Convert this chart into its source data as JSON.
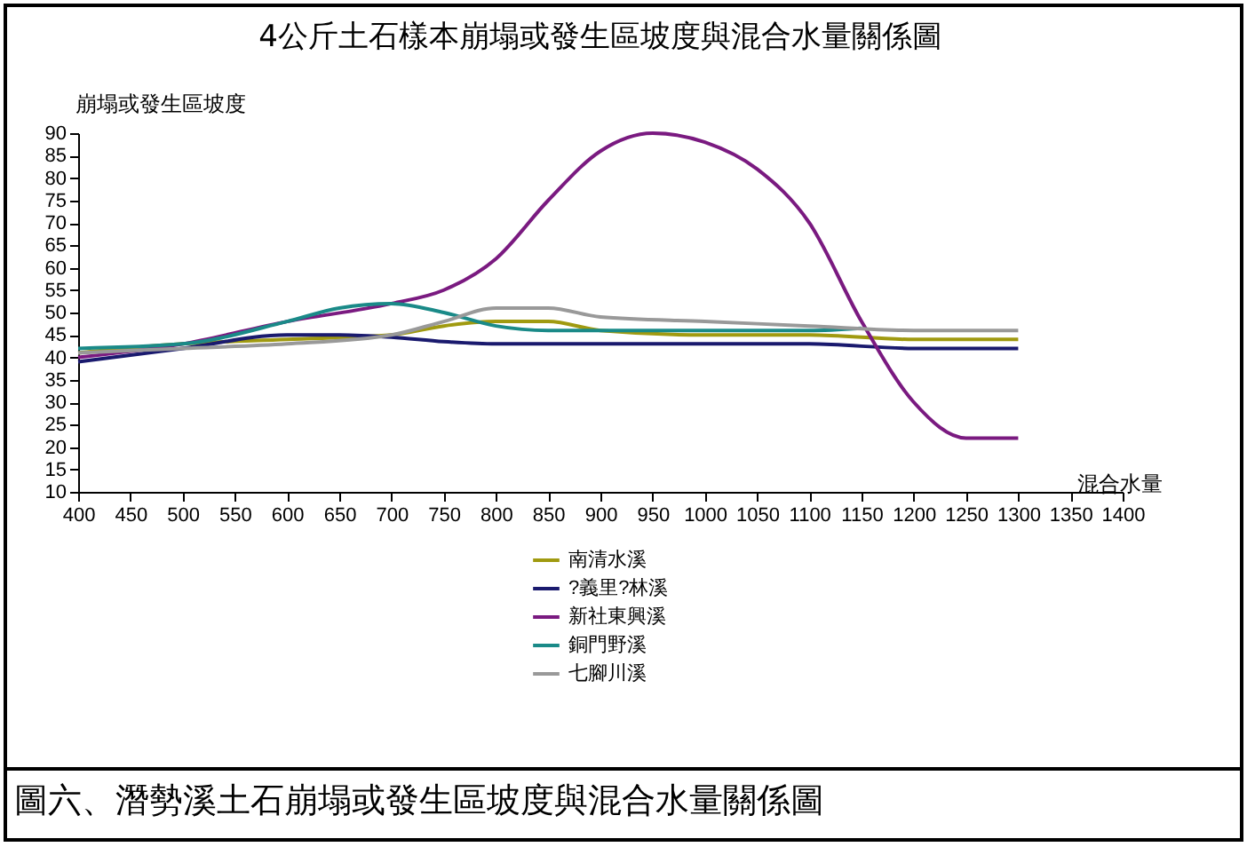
{
  "chart_data": {
    "type": "line",
    "title": "4公斤土石樣本崩塌或發生區坡度與混合水量關係圖",
    "xlabel": "混合水量",
    "ylabel": "崩塌或發生區坡度",
    "annotations": [
      "圖六、潛勢溪土石崩塌或發生區坡度與混合水量關係圖"
    ],
    "xlim": [
      400,
      1400
    ],
    "xticks": [
      400,
      450,
      500,
      550,
      600,
      650,
      700,
      750,
      800,
      850,
      900,
      950,
      1000,
      1050,
      1100,
      1150,
      1200,
      1250,
      1300,
      1350,
      1400
    ],
    "ylim": [
      10,
      90
    ],
    "yticks": [
      10,
      15,
      20,
      25,
      30,
      35,
      40,
      45,
      50,
      55,
      60,
      65,
      70,
      75,
      80,
      85,
      90
    ],
    "grid": false,
    "legend": "bottom",
    "marker": "none",
    "line_style": "solid",
    "series": [
      {
        "name": "南清水溪",
        "color": "#a09a10",
        "x": [
          400,
          500,
          600,
          700,
          750,
          800,
          850,
          900,
          1000,
          1100,
          1200,
          1300
        ],
        "values": [
          41,
          43,
          44,
          45,
          47,
          48,
          48,
          46,
          45,
          45,
          44,
          44
        ]
      },
      {
        "name": "?義里?林溪",
        "color": "#1a1a6e",
        "x": [
          400,
          500,
          600,
          650,
          700,
          750,
          800,
          1100,
          1200,
          1300
        ],
        "values": [
          39,
          42,
          45,
          45,
          44.5,
          43.5,
          43,
          43,
          42,
          42
        ]
      },
      {
        "name": "新社東興溪",
        "color": "#7a1a80",
        "x": [
          400,
          500,
          600,
          700,
          750,
          800,
          850,
          900,
          950,
          1000,
          1050,
          1100,
          1150,
          1200,
          1250,
          1300
        ],
        "values": [
          40,
          43,
          48,
          52,
          55,
          62,
          75,
          86,
          90,
          88,
          82,
          70,
          48,
          30,
          22,
          22
        ]
      },
      {
        "name": "銅門野溪",
        "color": "#1a8a88",
        "x": [
          400,
          500,
          600,
          650,
          700,
          750,
          800,
          850,
          900,
          1000,
          1100,
          1150
        ],
        "values": [
          42,
          43,
          48,
          51,
          52,
          50,
          47,
          46,
          46,
          46,
          46,
          46.5
        ]
      },
      {
        "name": "七腳川溪",
        "color": "#999999",
        "x": [
          400,
          500,
          600,
          700,
          750,
          800,
          850,
          900,
          1000,
          1100,
          1200,
          1300
        ],
        "values": [
          41,
          42,
          43,
          45,
          48,
          51,
          51,
          49,
          48,
          47,
          46,
          46
        ]
      }
    ]
  }
}
